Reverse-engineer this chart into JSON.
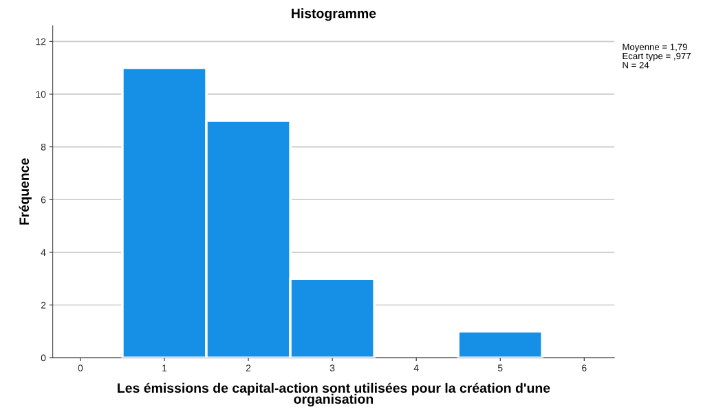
{
  "chart_data": {
    "type": "histogram",
    "title": "Histogramme",
    "xlabel": "Les émissions de capital-action sont utilisées pour la création d'une\norganisation",
    "ylabel": "Fréquence",
    "bins": [
      0.5,
      1.5,
      2.5,
      3.5,
      4.5,
      5.5
    ],
    "values": [
      11,
      9,
      3,
      0,
      1
    ],
    "color": "#1590e6",
    "xlim": [
      -0.33,
      6.36
    ],
    "xticks": [
      0,
      1,
      2,
      3,
      4,
      5,
      6
    ],
    "ylim": [
      0,
      12.6
    ],
    "yticks": [
      0,
      2,
      4,
      6,
      8,
      10,
      12
    ],
    "grid": "y",
    "legend": false,
    "annotations": [
      "Moyenne = 1,79",
      "Ecart type = ,977",
      "N = 24"
    ]
  }
}
